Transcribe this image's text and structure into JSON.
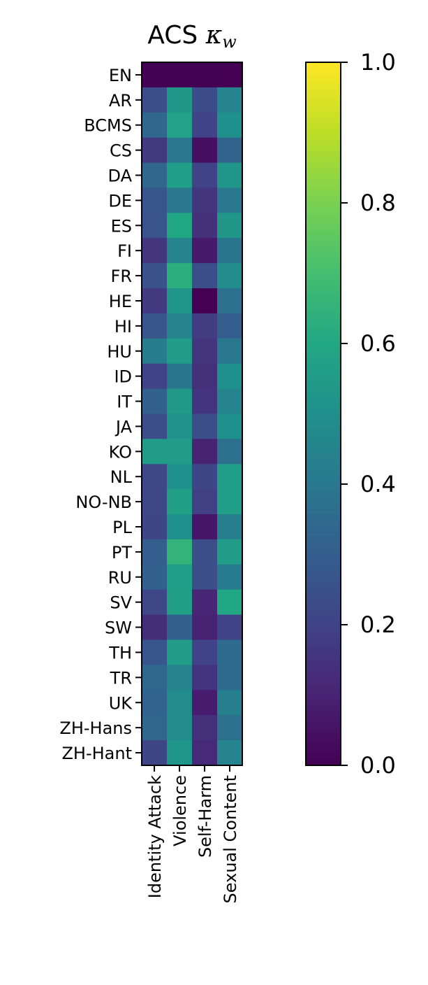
{
  "chart_data": {
    "type": "heatmap",
    "title": "ACS κw",
    "rows": [
      "EN",
      "AR",
      "BCMS",
      "CS",
      "DA",
      "DE",
      "ES",
      "FI",
      "FR",
      "HE",
      "HI",
      "HU",
      "ID",
      "IT",
      "JA",
      "KO",
      "NL",
      "NO-NB",
      "PL",
      "PT",
      "RU",
      "SV",
      "SW",
      "TH",
      "TR",
      "UK",
      "ZH-Hans",
      "ZH-Hant"
    ],
    "columns": [
      "Identity Attack",
      "Violence",
      "Self-Harm",
      "Sexual Content"
    ],
    "values": [
      [
        0.0,
        0.0,
        0.0,
        0.0
      ],
      [
        0.24,
        0.53,
        0.23,
        0.45
      ],
      [
        0.33,
        0.58,
        0.2,
        0.5
      ],
      [
        0.17,
        0.4,
        0.04,
        0.32
      ],
      [
        0.33,
        0.56,
        0.2,
        0.52
      ],
      [
        0.27,
        0.4,
        0.16,
        0.4
      ],
      [
        0.26,
        0.6,
        0.14,
        0.53
      ],
      [
        0.16,
        0.45,
        0.07,
        0.39
      ],
      [
        0.25,
        0.63,
        0.24,
        0.48
      ],
      [
        0.17,
        0.52,
        0.0,
        0.37
      ],
      [
        0.27,
        0.45,
        0.18,
        0.3
      ],
      [
        0.42,
        0.55,
        0.16,
        0.4
      ],
      [
        0.2,
        0.39,
        0.14,
        0.5
      ],
      [
        0.31,
        0.54,
        0.15,
        0.45
      ],
      [
        0.24,
        0.51,
        0.24,
        0.5
      ],
      [
        0.55,
        0.55,
        0.1,
        0.37
      ],
      [
        0.22,
        0.5,
        0.21,
        0.56
      ],
      [
        0.22,
        0.57,
        0.19,
        0.56
      ],
      [
        0.21,
        0.5,
        0.06,
        0.43
      ],
      [
        0.3,
        0.65,
        0.24,
        0.55
      ],
      [
        0.31,
        0.56,
        0.24,
        0.41
      ],
      [
        0.22,
        0.57,
        0.11,
        0.6
      ],
      [
        0.13,
        0.31,
        0.1,
        0.2
      ],
      [
        0.27,
        0.55,
        0.2,
        0.35
      ],
      [
        0.34,
        0.45,
        0.15,
        0.35
      ],
      [
        0.32,
        0.48,
        0.08,
        0.43
      ],
      [
        0.33,
        0.48,
        0.14,
        0.37
      ],
      [
        0.21,
        0.52,
        0.12,
        0.45
      ]
    ],
    "colorbar": {
      "min": 0.0,
      "max": 1.0,
      "ticks": [
        "0.0",
        "0.2",
        "0.4",
        "0.6",
        "0.8",
        "1.0"
      ],
      "colormap": "viridis"
    }
  }
}
